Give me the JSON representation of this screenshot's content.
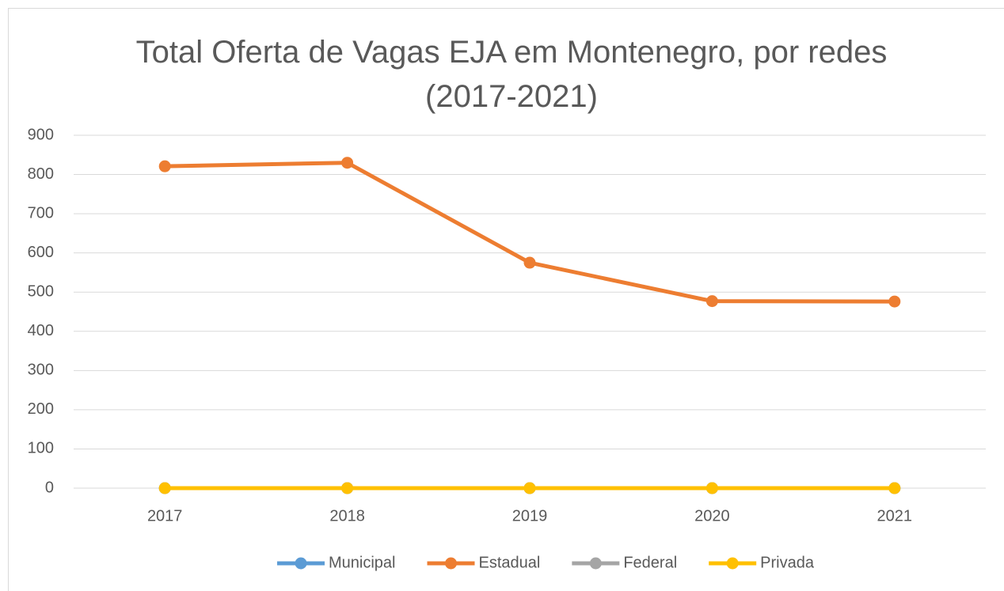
{
  "chart_data": {
    "type": "line",
    "title": "Total Oferta de Vagas EJA em Montenegro, por redes (2017-2021)",
    "categories": [
      "2017",
      "2018",
      "2019",
      "2020",
      "2021"
    ],
    "series": [
      {
        "name": "Municipal",
        "color": "#5b9bd5",
        "values": [
          0,
          0,
          0,
          0,
          0
        ]
      },
      {
        "name": "Estadual",
        "color": "#ed7d31",
        "values": [
          821,
          830,
          575,
          477,
          476
        ]
      },
      {
        "name": "Federal",
        "color": "#a5a5a5",
        "values": [
          0,
          0,
          0,
          0,
          0
        ]
      },
      {
        "name": "Privada",
        "color": "#ffc000",
        "values": [
          0,
          0,
          0,
          0,
          0
        ]
      }
    ],
    "ylim": [
      0,
      900
    ],
    "yticks": [
      0,
      100,
      200,
      300,
      400,
      500,
      600,
      700,
      800,
      900
    ],
    "grid": true,
    "legend": "bottom"
  }
}
